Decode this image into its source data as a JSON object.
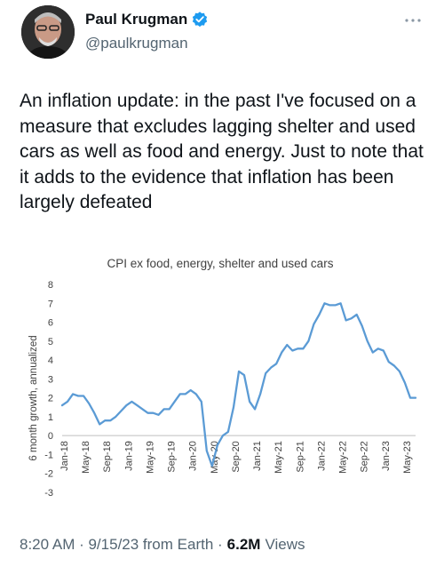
{
  "author": {
    "name": "Paul Krugman",
    "handle": "@paulkrugman",
    "verified": true
  },
  "tweet": {
    "text": "An inflation update: in the past I've focused on a measure that excludes lagging shelter and used cars as well as food and energy. Just to note that it adds to the evidence that inflation has been largely defeated"
  },
  "footer": {
    "meta": "8:20 AM · 9/15/23 from Earth ·",
    "views_count": "6.2M",
    "views_label": "Views"
  },
  "colors": {
    "line": "#5b9bd5",
    "verified": "#1d9bf0",
    "muted": "#536471"
  },
  "chart_data": {
    "type": "line",
    "title": "CPI ex food, energy, shelter and used cars",
    "ylabel": "6 month growth, annualized",
    "xlabel": "",
    "ylim": [
      -3,
      8
    ],
    "yticks": [
      -3,
      -2,
      -1,
      0,
      1,
      2,
      3,
      4,
      5,
      6,
      7,
      8
    ],
    "xtick_labels": [
      "Jan-18",
      "May-18",
      "Sep-18",
      "Jan-19",
      "May-19",
      "Sep-19",
      "Jan-20",
      "May-20",
      "Sep-20",
      "Jan-21",
      "May-21",
      "Sep-21",
      "Jan-22",
      "May-22",
      "Sep-22",
      "Jan-23",
      "May-23"
    ],
    "grid": false,
    "series": [
      {
        "values": [
          1.6,
          1.8,
          2.2,
          2.1,
          2.1,
          1.7,
          1.2,
          0.6,
          0.8,
          0.8,
          1.0,
          1.3,
          1.6,
          1.8,
          1.6,
          1.4,
          1.2,
          1.2,
          1.1,
          1.4,
          1.4,
          1.8,
          2.2,
          2.2,
          2.4,
          2.2,
          1.8,
          -0.8,
          -1.6,
          -0.5,
          0.0,
          0.2,
          1.5,
          3.4,
          3.2,
          1.8,
          1.4,
          2.2,
          3.3,
          3.6,
          3.8,
          4.4,
          4.8,
          4.5,
          4.6,
          4.6,
          5.0,
          5.9,
          6.4,
          7.0,
          6.9,
          6.9,
          7.0,
          6.1,
          6.2,
          6.4,
          5.8,
          5.0,
          4.4,
          4.6,
          4.5,
          3.9,
          3.7,
          3.4,
          2.8,
          2.0,
          2.0
        ]
      }
    ]
  }
}
